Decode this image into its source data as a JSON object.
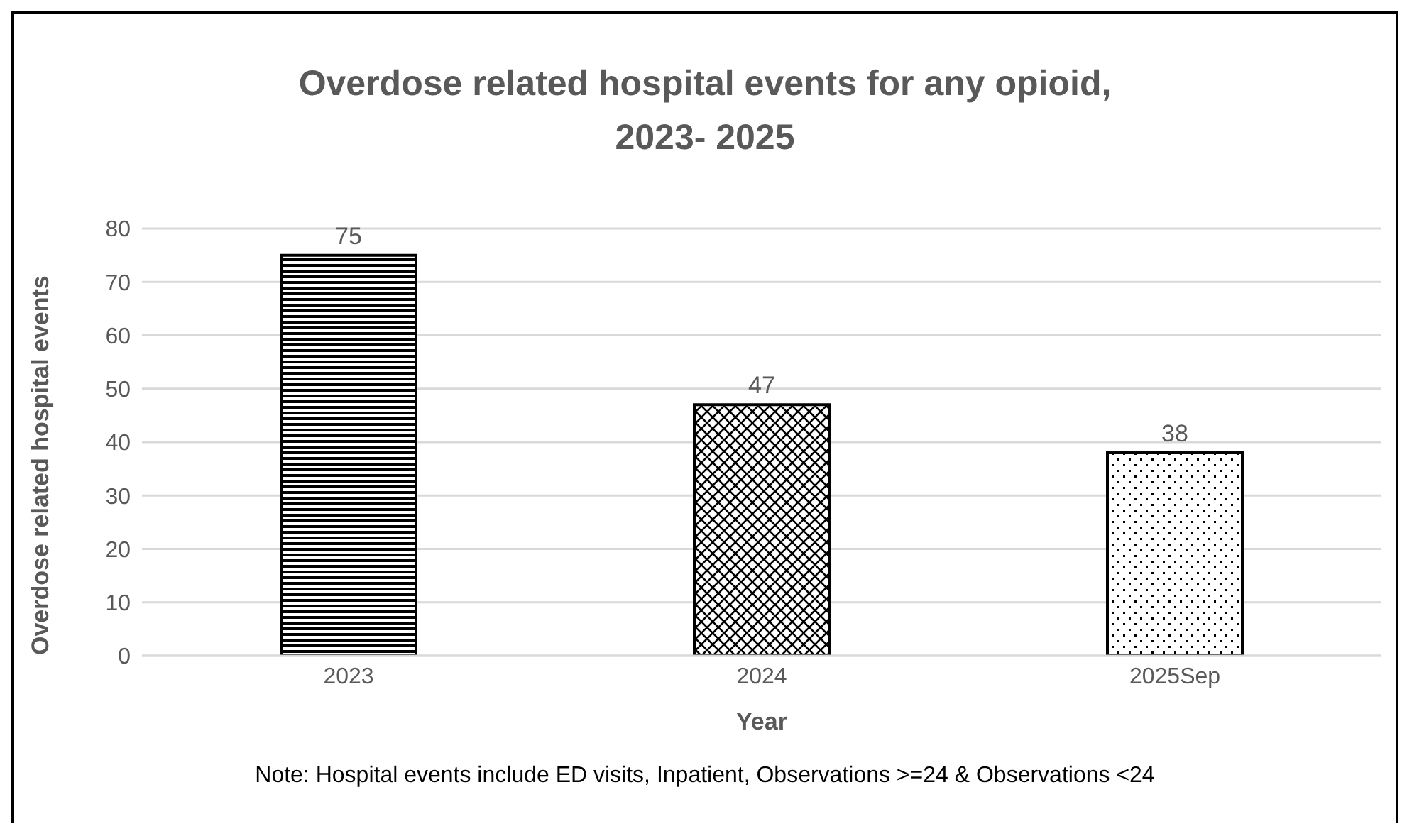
{
  "chart_data": {
    "type": "bar",
    "title": "Overdose related hospital events for any opioid, 2023- 2025",
    "xlabel": "Year",
    "ylabel": "Overdose related hospital events",
    "categories": [
      "2023",
      "2024",
      "2025Sep"
    ],
    "values": [
      75,
      47,
      38
    ],
    "colors": [
      "#000000",
      "#000000",
      "#000000"
    ],
    "ylim": [
      0,
      80
    ],
    "yticks": [
      0,
      10,
      20,
      30,
      40,
      50,
      60,
      70,
      80
    ],
    "grid": "y",
    "data_labels": true,
    "legend": false,
    "annotations": [
      "Note: Hospital events include ED visits, Inpatient, Observations >=24 & Observations <24"
    ]
  }
}
